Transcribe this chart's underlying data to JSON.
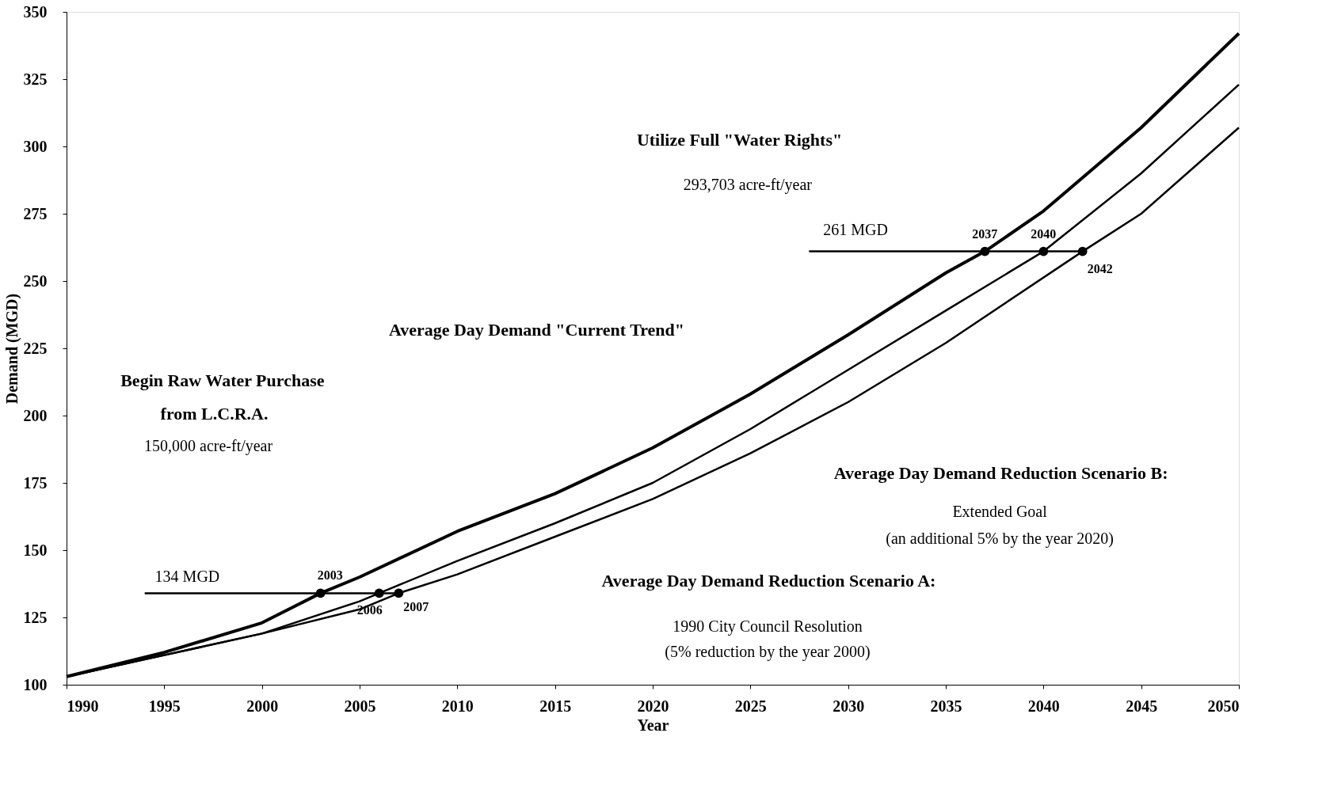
{
  "chart_data": {
    "type": "line",
    "xlabel": "Year",
    "ylabel": "Demand (MGD)",
    "xlim": [
      1990,
      2050
    ],
    "xticks": [
      1990,
      1995,
      2000,
      2005,
      2010,
      2015,
      2020,
      2025,
      2030,
      2035,
      2040,
      2045,
      2050
    ],
    "ylim": [
      100,
      350
    ],
    "yticks": [
      100,
      125,
      150,
      175,
      200,
      225,
      250,
      275,
      300,
      325,
      350
    ],
    "grid": false,
    "marker": "none",
    "series": [
      {
        "type": "line",
        "color": "#000000",
        "x": [
          1990,
          1995,
          2000,
          2003,
          2005,
          2010,
          2015,
          2020,
          2025,
          2030,
          2035,
          2037,
          2040,
          2045,
          2050
        ],
        "values": [
          103,
          112,
          123,
          134,
          140,
          157,
          171,
          188,
          208,
          230,
          253,
          261,
          276,
          307,
          342
        ]
      },
      {
        "type": "line",
        "color": "#000000",
        "x": [
          1990,
          1995,
          2000,
          2005,
          2006,
          2010,
          2015,
          2020,
          2025,
          2030,
          2035,
          2040,
          2045,
          2050
        ],
        "values": [
          103,
          111,
          119,
          131,
          134,
          146,
          160,
          175,
          195,
          217,
          239,
          261,
          290,
          323
        ]
      },
      {
        "type": "line",
        "color": "#000000",
        "x": [
          1990,
          1995,
          2000,
          2005,
          2007,
          2010,
          2015,
          2020,
          2025,
          2030,
          2035,
          2042,
          2045,
          2050
        ],
        "values": [
          103,
          111,
          119,
          128,
          134,
          141,
          155,
          169,
          186,
          205,
          227,
          261,
          275,
          307
        ]
      },
      {
        "type": "line",
        "color": "#000000",
        "x": [
          1994,
          2007
        ],
        "values": [
          134,
          134
        ]
      },
      {
        "type": "line",
        "color": "#000000",
        "x": [
          2028,
          2042
        ],
        "values": [
          261,
          261
        ]
      },
      {
        "type": "scatter",
        "marker": "circle",
        "color": "#000000",
        "x": [
          2003,
          2006,
          2007,
          2037,
          2040,
          2042
        ],
        "values": [
          134,
          134,
          134,
          261,
          261,
          261
        ]
      }
    ],
    "annotations": [
      "Utilize Full \"Water Rights\"",
      "293,703 acre-ft/year",
      "261 MGD",
      "Average Day Demand \"Current Trend\"",
      "Begin Raw Water Purchase",
      "from L.C.R.A.",
      "150,000 acre-ft/year",
      "134 MGD",
      "Average Day Demand Reduction Scenario B:",
      "Extended Goal",
      "(an additional 5% by the year 2020)",
      "Average Day Demand Reduction Scenario A:",
      "1990 City Council Resolution",
      "(5% reduction by the year 2000)",
      {
        "text": "2003",
        "x": 2003,
        "y": 134
      },
      {
        "text": "2006",
        "x": 2006,
        "y": 134
      },
      {
        "text": "2007",
        "x": 2007,
        "y": 134
      },
      {
        "text": "2037",
        "x": 2037,
        "y": 261
      },
      {
        "text": "2040",
        "x": 2040,
        "y": 261
      },
      {
        "text": "2042",
        "x": 2042,
        "y": 261
      }
    ]
  }
}
